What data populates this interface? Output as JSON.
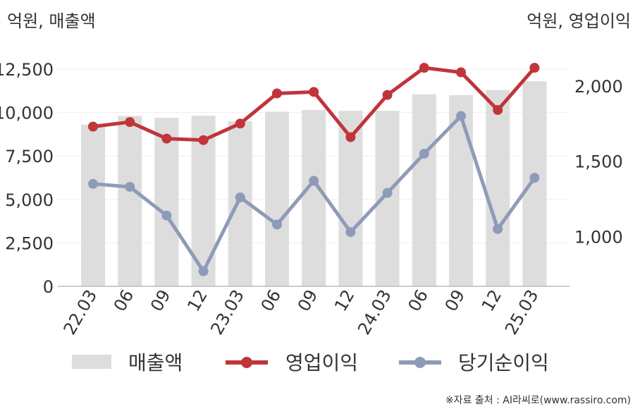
{
  "chart_data": {
    "type": "bar+line",
    "left_axis_label": "억원, 매출액",
    "right_axis_label": "억원, 영업이익",
    "categories": [
      "22.03",
      "06",
      "09",
      "12",
      "23.03",
      "06",
      "09",
      "12",
      "24.03",
      "06",
      "09",
      "12",
      "25.03"
    ],
    "left_ylim": [
      0,
      12500
    ],
    "left_ticks": [
      0,
      2500,
      5000,
      7500,
      10000,
      12500
    ],
    "left_tick_labels": [
      "0",
      "2,500",
      "5,000",
      "7,500",
      "10,000",
      "12,500"
    ],
    "right_ylim": [
      670,
      2350
    ],
    "right_ticks": [
      1000,
      1500,
      2000
    ],
    "right_tick_labels": [
      "1,000",
      "1,500",
      "2,000"
    ],
    "series": [
      {
        "name": "매출액",
        "type": "bar",
        "axis": "left",
        "color": "#dddddd",
        "values": [
          9300,
          9800,
          9700,
          9820,
          9500,
          10050,
          10150,
          10100,
          10100,
          11050,
          11000,
          11300,
          11800
        ]
      },
      {
        "name": "영업이익",
        "type": "line",
        "axis": "right",
        "color": "#c0353a",
        "values": [
          1730,
          1760,
          1650,
          1640,
          1750,
          1950,
          1960,
          1660,
          1940,
          2120,
          2090,
          1840,
          2120
        ]
      },
      {
        "name": "당기순이익",
        "type": "line",
        "axis": "right",
        "color": "#8e9bb8",
        "values": [
          1350,
          1330,
          1140,
          770,
          1260,
          1080,
          1370,
          1030,
          1290,
          1550,
          1800,
          1050,
          1390
        ]
      }
    ],
    "grid": true,
    "legend_position": "bottom"
  },
  "source": "※자료 출처 : AI라씨로(www.rassiro.com)"
}
